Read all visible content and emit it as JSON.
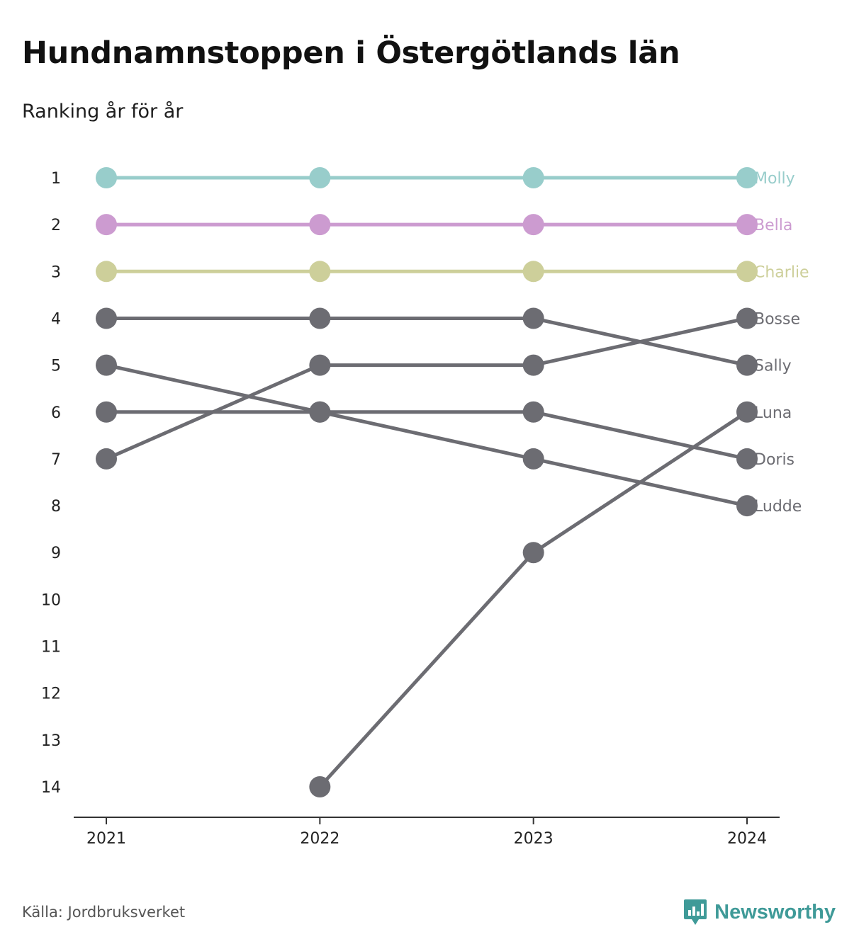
{
  "title": "Hundnamnstoppen i Östergötlands län",
  "subtitle": "Ranking år för år",
  "source": "Källa: Jordbruksverket",
  "brand": "Newsworthy",
  "colors": {
    "brand": "#3f9a98",
    "axis": "#333333",
    "grey_series": "#6c6c72"
  },
  "chart_data": {
    "type": "line",
    "x": [
      "2021",
      "2022",
      "2023",
      "2024"
    ],
    "y_ticks": [
      1,
      2,
      3,
      4,
      5,
      6,
      7,
      8,
      9,
      10,
      11,
      12,
      13,
      14
    ],
    "y_range": [
      1,
      14
    ],
    "y_inverted": true,
    "grid": false,
    "series": [
      {
        "name": "Molly",
        "color": "#98cdcb",
        "values": [
          1,
          1,
          1,
          1
        ]
      },
      {
        "name": "Bella",
        "color": "#cc9bd0",
        "values": [
          2,
          2,
          2,
          2
        ]
      },
      {
        "name": "Charlie",
        "color": "#cdcf9a",
        "values": [
          3,
          3,
          3,
          3
        ]
      },
      {
        "name": "Bosse",
        "color": "#6c6c72",
        "values": [
          7,
          5,
          5,
          4
        ]
      },
      {
        "name": "Sally",
        "color": "#6c6c72",
        "values": [
          4,
          4,
          4,
          5
        ]
      },
      {
        "name": "Luna",
        "color": "#6c6c72",
        "values": [
          null,
          14,
          9,
          6
        ]
      },
      {
        "name": "Doris",
        "color": "#6c6c72",
        "values": [
          6,
          6,
          6,
          7
        ]
      },
      {
        "name": "Ludde",
        "color": "#6c6c72",
        "values": [
          5,
          6,
          7,
          8
        ]
      }
    ]
  }
}
